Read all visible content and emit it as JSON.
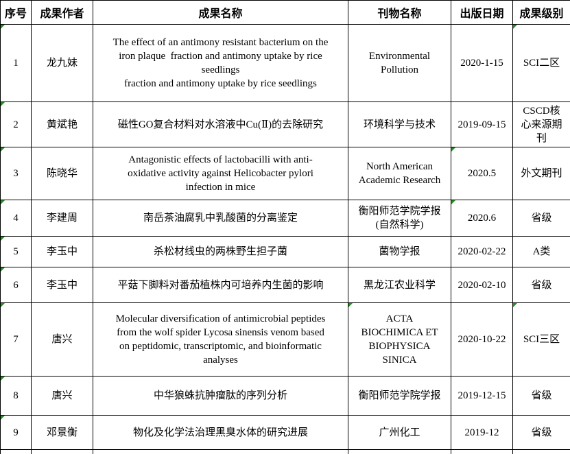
{
  "indicator_color": "#1f8f1f",
  "table": {
    "columns": [
      {
        "key": "no",
        "label": "序号"
      },
      {
        "key": "author",
        "label": "成果作者"
      },
      {
        "key": "title",
        "label": "成果名称"
      },
      {
        "key": "journal",
        "label": "刊物名称"
      },
      {
        "key": "date",
        "label": "出版日期"
      },
      {
        "key": "level",
        "label": "成果级别"
      }
    ],
    "rows": [
      {
        "no": "1",
        "author": "龙九妹",
        "title": "The effect of an antimony resistant bacterium on the\niron plaque  fraction and antimony uptake by rice\nseedlings\nfraction and antimony uptake by rice seedlings",
        "journal": "Environmental\nPollution",
        "date": "2020-1-15",
        "level": "SCI二区",
        "indicators": [
          "no",
          "level"
        ]
      },
      {
        "no": "2",
        "author": "黄斌艳",
        "title": "磁性GO复合材料对水溶液中Cu(Ⅱ)的去除研究",
        "journal": "环境科学与技术",
        "date": "2019-09-15",
        "level": "CSCD核\n心来源期\n刊",
        "indicators": [
          "no"
        ]
      },
      {
        "no": "3",
        "author": "陈晓华",
        "title": "Antagonistic effects of lactobacilli with anti-\noxidative activity against Helicobacter pylori\ninfection in mice",
        "journal": "North American\nAcademic Research",
        "date": "2020.5",
        "level": "外文期刊",
        "indicators": [
          "no",
          "date"
        ]
      },
      {
        "no": "4",
        "author": "李建周",
        "title": "南岳茶油腐乳中乳酸菌的分离鉴定",
        "journal": "衡阳师范学院学报\n(自然科学)",
        "date": "2020.6",
        "level": "省级",
        "indicators": [
          "no",
          "date"
        ]
      },
      {
        "no": "5",
        "author": "李玉中",
        "title": "杀松材线虫的两株野生担子菌",
        "journal": "菌物学报",
        "date": "2020-02-22",
        "level": "A类",
        "indicators": [
          "no"
        ]
      },
      {
        "no": "6",
        "author": "李玉中",
        "title": "平菇下脚料对番茄植株内可培养内生菌的影响",
        "journal": "黑龙江农业科学",
        "date": "2020-02-10",
        "level": "省级",
        "indicators": [
          "no"
        ]
      },
      {
        "no": "7",
        "author": "唐兴",
        "title": "Molecular diversification of antimicrobial peptides\nfrom the wolf spider Lycosa sinensis venom based\non peptidomic, transcriptomic, and bioinformatic\nanalyses",
        "journal": "ACTA\nBIOCHIMICA ET\nBIOPHYSICA\nSINICA",
        "date": "2020-10-22",
        "level": "SCI三区",
        "indicators": [
          "no",
          "journal",
          "level"
        ]
      },
      {
        "no": "8",
        "author": "唐兴",
        "title": "中华狼蛛抗肿瘤肽的序列分析",
        "journal": "衡阳师范学院学报",
        "date": "2019-12-15",
        "level": "省级",
        "indicators": [
          "no"
        ]
      },
      {
        "no": "9",
        "author": "邓景衡",
        "title": "物化及化学法治理黑臭水体的研究进展",
        "journal": "广州化工",
        "date": "2019-12",
        "level": "省级",
        "indicators": [
          "no"
        ]
      }
    ]
  }
}
